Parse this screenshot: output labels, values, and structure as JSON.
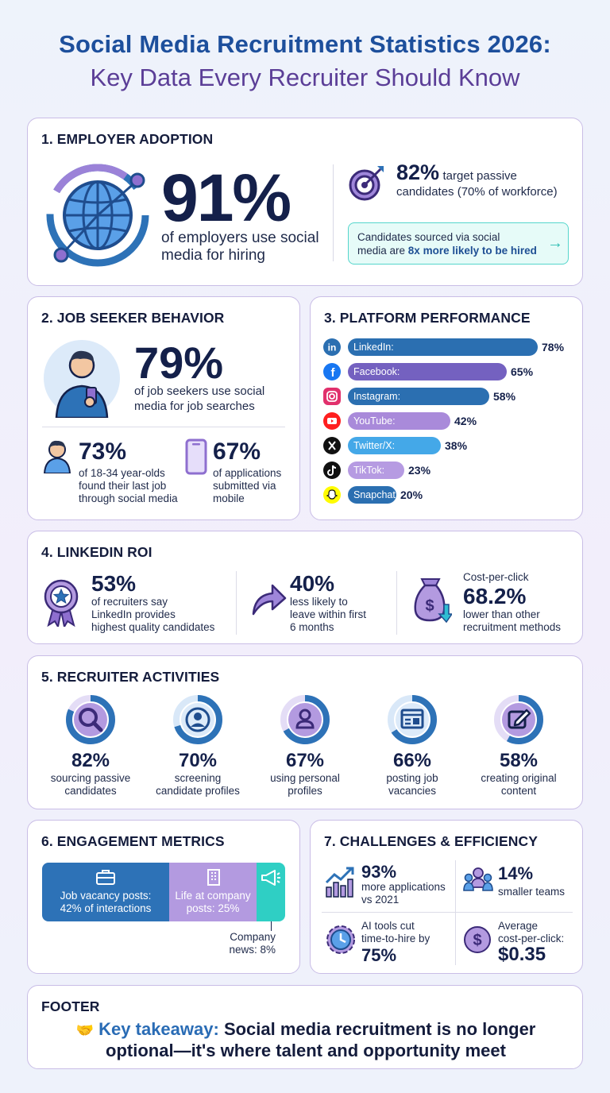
{
  "header": {
    "title_line1": "Social Media Recruitment Statistics 2026:",
    "title_line2": "Key Data Every Recruiter Should Know"
  },
  "colors": {
    "blue": "#2d72b7",
    "purple": "#8e6fcf",
    "light_purple": "#b39ae0",
    "teal": "#2fcfc4",
    "navy": "#14204a"
  },
  "section1": {
    "title": "1.  EMPLOYER ADOPTION",
    "stat": "91%",
    "stat_desc": "of employers use social media for hiring",
    "icon": "globe-network-icon",
    "target_stat": "82%",
    "target_desc_a": "target passive",
    "target_desc_b": "candidates (70% of workforce)",
    "target_icon": "target-icon",
    "callout_line1": "Candidates sourced via social",
    "callout_line2_a": "media are ",
    "callout_line2_b": "8x more likely to be hired",
    "callout_arrow": "→"
  },
  "section2": {
    "title": "2.  JOB SEEKER BEHAVIOR",
    "stat": "79%",
    "stat_desc_a": "of job seekers use social",
    "stat_desc_b": "media for job searches",
    "sub1_stat": "73%",
    "sub1_desc": [
      "of 18-34 year-olds",
      "found their last job",
      "through social media"
    ],
    "sub2_stat": "67%",
    "sub2_desc": [
      "of applications",
      "submitted via",
      "mobile"
    ]
  },
  "section3": {
    "title": "3.  PLATFORM PERFORMANCE",
    "platforms": [
      {
        "name": "LinkedIn:",
        "value": 78,
        "label": "78%",
        "color": "#2b6fb1",
        "icon": "linkedin-icon"
      },
      {
        "name": "Facebook:",
        "value": 65,
        "label": "65%",
        "color": "#7461c0",
        "icon": "facebook-icon"
      },
      {
        "name": "Instagram:",
        "value": 58,
        "label": "58%",
        "color": "#2b6fb1",
        "icon": "instagram-icon"
      },
      {
        "name": "YouTube:",
        "value": 42,
        "label": "42%",
        "color": "#a98ada",
        "icon": "youtube-icon"
      },
      {
        "name": "Twitter/X:",
        "value": 38,
        "label": "38%",
        "color": "#44a8e8",
        "icon": "x-icon"
      },
      {
        "name": "TikTok:",
        "value": 23,
        "label": "23%",
        "color": "#b69be2",
        "icon": "tiktok-icon"
      },
      {
        "name": "Snapchat",
        "value": 20,
        "label": "20%",
        "color": "#2b6fb1",
        "icon": "snapchat-icon"
      }
    ]
  },
  "section4": {
    "title": "4.  LINKEDIN ROI",
    "items": [
      {
        "stat": "53%",
        "desc": [
          "of recruiters say",
          "LinkedIn provides",
          "highest quality candidates"
        ],
        "icon": "award-badge-icon"
      },
      {
        "stat": "40%",
        "desc": [
          "less likely to",
          "leave within first",
          "6 months"
        ],
        "icon": "arrow-curve-icon"
      },
      {
        "pre": "Cost-per-click",
        "stat": "68.2%",
        "desc": [
          "lower than other",
          "recruitment methods"
        ],
        "icon": "money-bag-icon"
      }
    ]
  },
  "section5": {
    "title": "5.  RECRUITER ACTIVITIES",
    "items": [
      {
        "stat": "82%",
        "value": 82,
        "desc": [
          "sourcing passive",
          "candidates"
        ],
        "icon": "search-icon"
      },
      {
        "stat": "70%",
        "value": 70,
        "desc": [
          "screening",
          "candidate profiles"
        ],
        "icon": "profile-icon"
      },
      {
        "stat": "67%",
        "value": 67,
        "desc": [
          "using personal",
          "profiles"
        ],
        "icon": "person-icon"
      },
      {
        "stat": "66%",
        "value": 66,
        "desc": [
          "posting job",
          "vacancies"
        ],
        "icon": "job-board-icon"
      },
      {
        "stat": "58%",
        "value": 58,
        "desc": [
          "creating original",
          "content"
        ],
        "icon": "edit-icon"
      }
    ]
  },
  "section6": {
    "title": "6.  ENGAGEMENT METRICS",
    "segments": [
      {
        "label_a": "Job vacancy posts:",
        "label_b": "42% of interactions",
        "value": 42,
        "icon": "briefcase-icon"
      },
      {
        "label_a": "Life at company",
        "label_b": "posts: 25%",
        "value": 25,
        "icon": "building-icon"
      },
      {
        "label_a": "Company",
        "label_b": "news: 8%",
        "value": 8,
        "icon": "megaphone-icon"
      }
    ]
  },
  "section7": {
    "title": "7.  CHALLENGES & EFFICIENCY",
    "items": [
      {
        "stat": "93%",
        "desc": [
          "more applications",
          "vs 2021"
        ],
        "icon": "growth-chart-icon"
      },
      {
        "stat": "14%",
        "desc": [
          "smaller teams"
        ],
        "icon": "team-icon"
      },
      {
        "desc": [
          "AI tools cut",
          "time-to-hire by"
        ],
        "stat": "75%",
        "icon": "gear-clock-icon"
      },
      {
        "desc": [
          "Average",
          "cost-per-click:"
        ],
        "stat": "$0.35",
        "icon": "dollar-icon"
      }
    ]
  },
  "footer": {
    "title": "FOOTER",
    "emoji": "🤝",
    "takeaway_label": "Key takeaway:",
    "takeaway_a": "Social media recruitment is no longer",
    "takeaway_b": "optional—it's where talent and opportunity meet"
  }
}
